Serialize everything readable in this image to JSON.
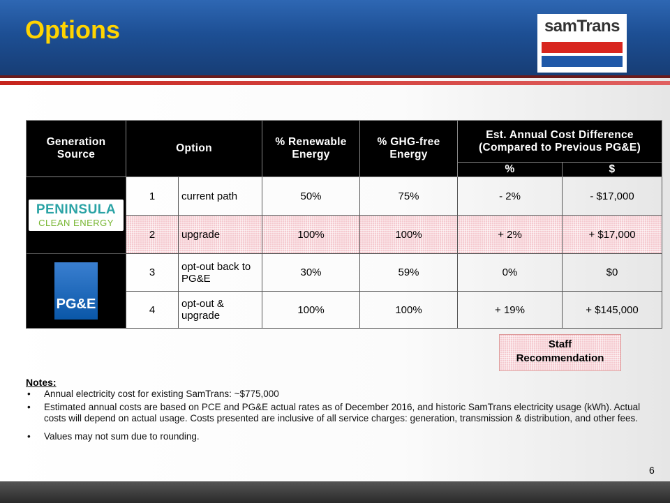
{
  "header": {
    "title": "Options",
    "logo": "samTrans"
  },
  "table": {
    "headers": [
      "Generation Source",
      "Option",
      "% Renewable Energy",
      "% GHG-free Energy"
    ],
    "cost_header": [
      "Est. Annual Cost Difference",
      "(Compared to Previous PG&E)"
    ],
    "subheaders": [
      "%",
      "$"
    ],
    "sources": [
      {
        "name": "PENINSULA",
        "tagline": "CLEAN ENERGY"
      },
      {
        "name": "PG&E"
      }
    ],
    "rows": [
      [
        "1",
        "current path",
        "50%",
        "75%",
        "- 2%",
        "- $17,000"
      ],
      [
        "2",
        "upgrade",
        "100%",
        "100%",
        "+ 2%",
        "+ $17,000"
      ],
      [
        "3",
        "opt-out back to PG&E",
        "30%",
        "59%",
        "0%",
        "$0"
      ],
      [
        "4",
        "opt-out & upgrade",
        "100%",
        "100%",
        "+ 19%",
        "+ $145,000"
      ]
    ]
  },
  "recommendation": [
    "Staff",
    "Recommendation"
  ],
  "notes": {
    "title": "Notes:",
    "items": [
      "Annual electricity cost for existing SamTrans: ~$775,000",
      "Estimated annual costs are based on PCE and PG&E actual rates as of December 2016, and historic SamTrans electricity usage (kWh). Actual costs will depend on actual usage. Costs presented are inclusive of all service charges: generation, transmission & distribution, and other fees.",
      "Values may not sum due to rounding."
    ]
  },
  "page_number": "6"
}
